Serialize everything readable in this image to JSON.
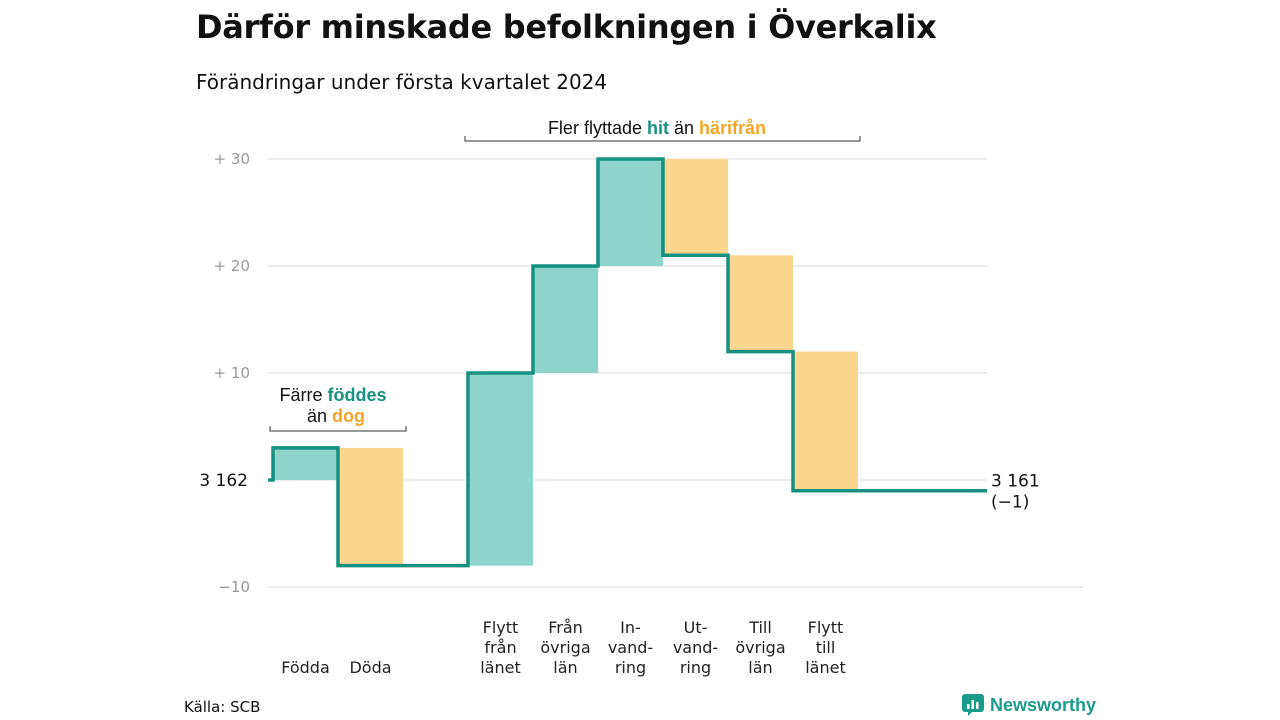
{
  "title": "Därför minskade befolkningen i Överkalix",
  "subtitle": "Förändringar under första kvartalet 2024",
  "source": "Källa: SCB",
  "brand": "Newsworthy",
  "colors": {
    "positive": "#8fd4cb",
    "negative": "#fbd68e",
    "line": "#17917f",
    "accent_green": "#17917f",
    "accent_orange": "#f3a52a",
    "grid": "#dddddd"
  },
  "chart_data": {
    "type": "waterfall",
    "start_label": "3  162",
    "end_label": [
      "3 161",
      "(−1)"
    ],
    "y_ticks": [
      {
        "value": 30,
        "label": "+  30"
      },
      {
        "value": 20,
        "label": "+  20"
      },
      {
        "value": 10,
        "label": "+  10"
      },
      {
        "value": -10,
        "label": "−10"
      }
    ],
    "ylim": [
      -10,
      30
    ],
    "steps": [
      {
        "label": [
          "Födda"
        ],
        "delta": 3,
        "kind": "positive"
      },
      {
        "label": [
          "Döda"
        ],
        "delta": -11,
        "kind": "negative"
      },
      {
        "label": [],
        "delta": 0,
        "kind": "gap"
      },
      {
        "label": [
          "Flytt",
          "från",
          "länet"
        ],
        "delta": 18,
        "kind": "positive"
      },
      {
        "label": [
          "Från",
          "övriga",
          "län"
        ],
        "delta": 10,
        "kind": "positive"
      },
      {
        "label": [
          "In-",
          "vand-",
          "ring"
        ],
        "delta": 10,
        "kind": "positive"
      },
      {
        "label": [
          "Ut-",
          "vand-",
          "ring"
        ],
        "delta": -9,
        "kind": "negative"
      },
      {
        "label": [
          "Till",
          "övriga",
          "län"
        ],
        "delta": -9,
        "kind": "negative"
      },
      {
        "label": [
          "Flytt",
          "till",
          "länet"
        ],
        "delta": -13,
        "kind": "negative"
      }
    ],
    "annotations": {
      "births": {
        "line1_a": "Färre ",
        "line1_b": "föddes",
        "line2_a": "än ",
        "line2_b": "dog"
      },
      "moves": {
        "a": "Fler flyttade ",
        "b": "hit",
        "c": " än ",
        "d": "härifrån"
      }
    }
  }
}
